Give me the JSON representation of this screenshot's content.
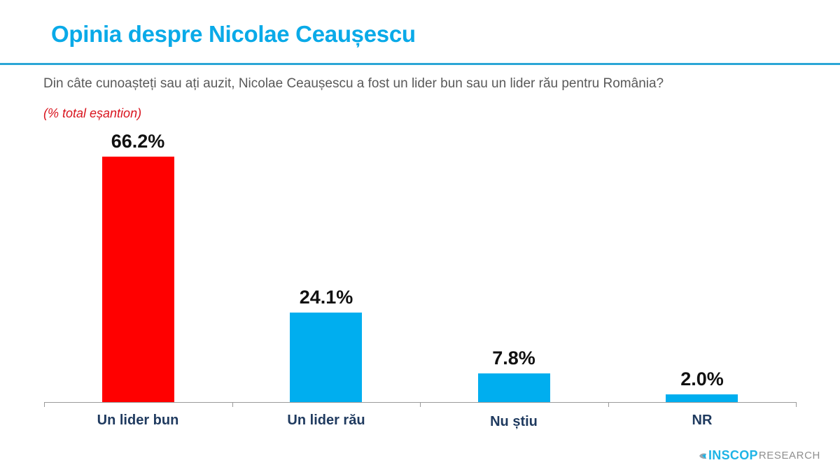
{
  "header": {
    "title": "Opinia despre Nicolae Ceaușescu",
    "question": "Din câte cunoașteți sau ați auzit, Nicolae Ceaușescu a fost un lider bun sau un lider rău pentru România?",
    "subtitle": "(% total eșantion)"
  },
  "colors": {
    "title": "#0AAAE8",
    "rule": "#2BA6D6",
    "highlight_bar": "#FF0000",
    "bar": "#00AEEF",
    "category_label": "#1F3A5F",
    "subtitle": "#D9141E"
  },
  "chart_data": {
    "type": "bar",
    "title": "Opinia despre Nicolae Ceaușescu",
    "subtitle": "(% total eșantion)",
    "categories": [
      "Un lider bun",
      "Un lider rău",
      "Nu știu",
      "NR"
    ],
    "values": [
      66.2,
      24.1,
      7.8,
      2.0
    ],
    "value_labels": [
      "66.2%",
      "24.1%",
      "7.8%",
      "2.0%"
    ],
    "bar_colors": [
      "#FF0000",
      "#00AEEF",
      "#00AEEF",
      "#00AEEF"
    ],
    "xlabel": "",
    "ylabel": "",
    "ylim": [
      0,
      70
    ],
    "grid": false,
    "legend": "none"
  },
  "footer": {
    "logo_bold": "INSCOP",
    "logo_light": "RESEARCH"
  }
}
